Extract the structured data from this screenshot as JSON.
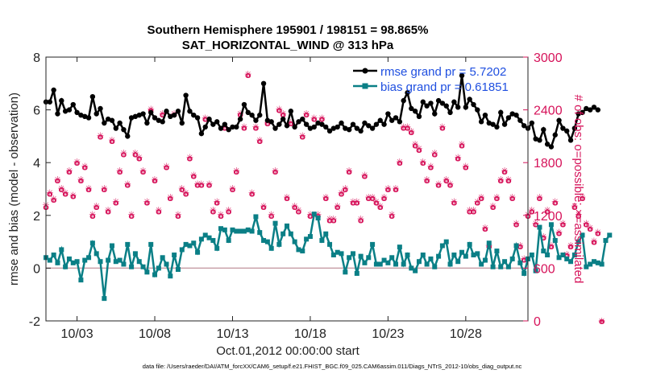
{
  "chart_data": {
    "type": "line",
    "title": "Southern Hemisphere 195901 / 198151 = 98.865%",
    "subtitle": "SAT_HORIZONTAL_WIND @ 313 hPa",
    "xlabel": "Oct.01,2012 00:00:00 start",
    "ylabel": "rmse and bias (model - observation)",
    "y2label": "# of obs: o=possible; ×=assimilated",
    "footnote": "data file: /Users/raeder/DAI/ATM_forcXX/CAM6_setup/f.e21.FHIST_BGC.f09_025.CAM6assim.011/Diags_NTrS_2012-10/obs_diag_output.nc",
    "ylim": [
      -2,
      8
    ],
    "y2lim": [
      0,
      3000
    ],
    "xlim": [
      1,
      32
    ],
    "yticks": [
      "-2",
      "0",
      "2",
      "4",
      "6",
      "8"
    ],
    "y2ticks": [
      "0",
      "600",
      "1200",
      "1800",
      "2400",
      "3000"
    ],
    "xticks": [
      {
        "day": 3,
        "label": "10/03"
      },
      {
        "day": 8,
        "label": "10/08"
      },
      {
        "day": 13,
        "label": "10/13"
      },
      {
        "day": 18,
        "label": "10/18"
      },
      {
        "day": 23,
        "label": "10/23"
      },
      {
        "day": 28,
        "label": "10/28"
      }
    ],
    "legend": {
      "position": "top-right",
      "entries": [
        "rmse grand pr = 5.7202",
        "bias grand pr = 0.61851"
      ]
    },
    "colors": {
      "rmse": "#000000",
      "bias": "#0a7f86",
      "obs": "#d6135a",
      "zero_line": "#c8a0a8"
    },
    "series": [
      {
        "name": "rmse",
        "axis": "left",
        "x_start": 1,
        "x_step": 0.25,
        "values": [
          6.3,
          6.3,
          6.75,
          5.85,
          6.35,
          5.95,
          6.0,
          6.2,
          5.9,
          5.8,
          5.75,
          5.7,
          6.5,
          5.85,
          6.05,
          5.5,
          5.65,
          5.6,
          5.3,
          5.5,
          5.25,
          5.0,
          5.7,
          5.75,
          5.8,
          5.85,
          5.5,
          5.9,
          5.7,
          5.6,
          5.55,
          5.95,
          5.75,
          5.8,
          5.95,
          5.5,
          6.55,
          5.95,
          5.8,
          5.7,
          5.1,
          5.35,
          5.65,
          5.45,
          5.55,
          5.3,
          5.45,
          5.25,
          5.35,
          5.35,
          5.65,
          6.2,
          5.9,
          5.8,
          5.6,
          5.8,
          7.0,
          5.6,
          5.55,
          5.3,
          5.45,
          5.65,
          5.4,
          5.95,
          5.35,
          5.55,
          5.65,
          5.45,
          5.3,
          5.35,
          5.5,
          5.45,
          5.35,
          5.2,
          5.3,
          5.35,
          5.5,
          5.3,
          5.25,
          5.45,
          5.3,
          5.2,
          5.5,
          5.4,
          5.3,
          5.45,
          5.6,
          5.45,
          5.85,
          5.6,
          5.7,
          5.55,
          6.35,
          6.65,
          6.05,
          5.95,
          5.75,
          6.3,
          6.15,
          6.25,
          5.85,
          6.35,
          6.25,
          6.15,
          5.9,
          6.3,
          6.1,
          7.3,
          6.1,
          6.4,
          6.2,
          6.0,
          5.55,
          5.8,
          5.5,
          5.45,
          5.35,
          5.9,
          5.45,
          5.7,
          5.85,
          5.8,
          5.6,
          5.4,
          5.3,
          5.5,
          4.9,
          4.85,
          5.25,
          4.7,
          4.6,
          5.05,
          5.6,
          5.3,
          5.2,
          4.85,
          5.3,
          5.85,
          5.9,
          6.05,
          6.0,
          6.1,
          6.0
        ]
      },
      {
        "name": "bias",
        "axis": "left",
        "x_start": 1,
        "x_step": 0.25,
        "values": [
          0.4,
          0.3,
          0.5,
          0.2,
          0.7,
          0.05,
          0.35,
          0.2,
          0.25,
          -0.45,
          0.3,
          0.4,
          0.95,
          0.55,
          0.25,
          -1.15,
          0.3,
          0.85,
          0.25,
          0.3,
          0.15,
          0.9,
          0.05,
          0.55,
          0.25,
          0.05,
          -0.15,
          0.9,
          -0.25,
          0.0,
          0.4,
          0.15,
          -0.3,
          0.5,
          -0.05,
          0.7,
          0.9,
          0.85,
          0.95,
          0.6,
          1.1,
          1.25,
          1.15,
          1.05,
          0.75,
          1.5,
          1.45,
          1.05,
          1.45,
          1.4,
          1.4,
          1.4,
          1.45,
          1.4,
          1.95,
          1.35,
          1.05,
          1.0,
          0.75,
          1.7,
          0.9,
          1.3,
          1.6,
          1.3,
          1.0,
          0.7,
          0.65,
          1.1,
          1.2,
          2.05,
          1.9,
          1.05,
          1.3,
          0.9,
          0.5,
          0.6,
          0.55,
          -0.15,
          0.4,
          0.55,
          -0.2,
          0.45,
          0.2,
          0.4,
          0.9,
          0.15,
          0.15,
          0.3,
          0.2,
          0.4,
          0.15,
          0.8,
          0.15,
          0.5,
          0.0,
          -0.1,
          0.25,
          0.5,
          0.15,
          0.35,
          0.05,
          0.45,
          0.85,
          1.0,
          0.15,
          0.5,
          0.25,
          0.6,
          0.45,
          0.9,
          0.5,
          0.55,
          0.15,
          0.3,
          0.95,
          0.05,
          0.65,
          0.05,
          0.25,
          0.05,
          0.35,
          0.85,
          0.2,
          -0.2,
          0.35,
          0.5,
          -0.1,
          1.55,
          0.65,
          0.5,
          1.65,
          1.05,
          0.4,
          0.5,
          0.35,
          0.25,
          0.5,
          1.0,
          1.25,
          0.05,
          0.15,
          0.25,
          0.2,
          0.15,
          1.05,
          1.25
        ]
      },
      {
        "name": "possible",
        "axis": "right",
        "x_start": 1,
        "x_step": 0.25,
        "values": [
          1300,
          1450,
          1380,
          1600,
          1500,
          1450,
          1700,
          1420,
          1800,
          1600,
          1750,
          1500,
          1200,
          1300,
          2100,
          1500,
          1250,
          2050,
          1350,
          1700,
          1900,
          1550,
          1200,
          1900,
          1850,
          1700,
          1350,
          2400,
          1600,
          1250,
          2350,
          1750,
          1400,
          2350,
          1200,
          1500,
          1450,
          1850,
          1650,
          1550,
          1550,
          2300,
          1550,
          1250,
          1350,
          1200,
          2200,
          1250,
          1500,
          1700,
          2350,
          2200,
          2800,
          1450,
          2200,
          2050,
          1300,
          2250,
          1200,
          1700,
          2400,
          2350,
          1400,
          2250,
          1300,
          1250,
          2100,
          2350,
          1200,
          2300,
          1200,
          2300,
          1400,
          1150,
          1150,
          1300,
          1450,
          1500,
          1700,
          1350,
          1350,
          1150,
          1650,
          1400,
          1400,
          1350,
          1300,
          1400,
          1500,
          1200,
          1500,
          1800,
          2200,
          2200,
          2150,
          2000,
          1950,
          1800,
          1600,
          1750,
          1900,
          1550,
          2200,
          1600,
          1550,
          1350,
          1850,
          2000,
          1750,
          1250,
          1250,
          1350,
          1400,
          1050,
          850,
          1300,
          1400,
          1600,
          1700,
          1600,
          1400,
          1100,
          850,
          700,
          1200,
          1250,
          1100,
          1400,
          950,
          1250,
          850,
          1350,
          1000,
          1100,
          750,
          850,
          1300,
          1200,
          1400,
          1100,
          1050,
          900,
          1000,
          0
        ]
      },
      {
        "name": "assimilated",
        "axis": "right",
        "x_start": 1,
        "x_step": 0.25,
        "values": [
          1320,
          1460,
          1390,
          1610,
          1510,
          1460,
          1710,
          1430,
          1810,
          1610,
          1760,
          1510,
          1210,
          1310,
          2110,
          1510,
          1260,
          2060,
          1360,
          1710,
          1910,
          1560,
          1210,
          1910,
          1860,
          1710,
          1360,
          2410,
          1610,
          1260,
          2360,
          1760,
          1410,
          2360,
          1210,
          1510,
          1460,
          1860,
          1660,
          1560,
          1560,
          2310,
          1560,
          1260,
          1360,
          1210,
          2210,
          1260,
          1510,
          1710,
          2360,
          2210,
          2810,
          1460,
          2210,
          2060,
          1310,
          2260,
          1210,
          1710,
          2410,
          2360,
          1410,
          2260,
          1310,
          1260,
          2110,
          2360,
          1210,
          2310,
          1210,
          2310,
          1410,
          1160,
          1160,
          1310,
          1460,
          1510,
          1710,
          1360,
          1360,
          1160,
          1660,
          1410,
          1410,
          1360,
          1310,
          1410,
          1510,
          1210,
          1510,
          1810,
          2210,
          2210,
          2160,
          2010,
          1960,
          1810,
          1610,
          1760,
          1910,
          1560,
          2210,
          1610,
          1560,
          1360,
          1860,
          2010,
          1760,
          1260,
          1260,
          1360,
          1410,
          1060,
          860,
          1310,
          1410,
          1610,
          1710,
          1610,
          1410,
          1110,
          860,
          710,
          1210,
          1260,
          1110,
          1410,
          960,
          1260,
          860,
          1360,
          1010,
          1110,
          760,
          860,
          1310,
          1210,
          1410,
          1110,
          1060,
          910,
          1010,
          0
        ]
      }
    ]
  }
}
